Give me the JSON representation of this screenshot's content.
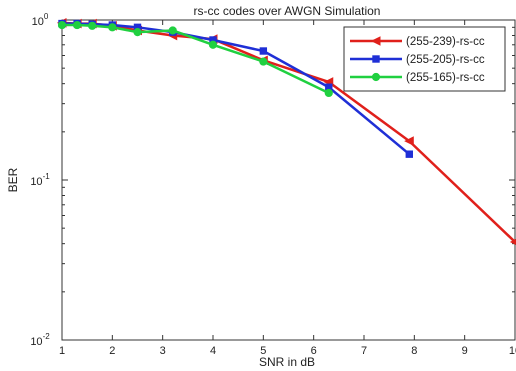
{
  "chart_data": {
    "type": "line",
    "title": "rs-cc codes over AWGN Simulation",
    "xlabel": "SNR in dB",
    "ylabel": "BER",
    "xlim": [
      1,
      10
    ],
    "ylim": [
      0.01,
      1
    ],
    "yscale": "log",
    "grid": false,
    "legend_position": "top-right",
    "xticks": [
      "1",
      "2",
      "3",
      "4",
      "5",
      "6",
      "7",
      "8",
      "9",
      "10"
    ],
    "yticks": [
      {
        "base": "10",
        "exp": "0",
        "value": 1
      },
      {
        "base": "10",
        "exp": "-1",
        "value": 0.1
      },
      {
        "base": "10",
        "exp": "-2",
        "value": 0.01
      }
    ],
    "series": [
      {
        "name": "(255-239)-rs-cc",
        "color": "#e0201b",
        "marker": "triangle-left",
        "points": [
          [
            1.0,
            0.96
          ],
          [
            1.3,
            0.95
          ],
          [
            1.6,
            0.95
          ],
          [
            2.0,
            0.92
          ],
          [
            2.5,
            0.86
          ],
          [
            3.2,
            0.8
          ],
          [
            4.0,
            0.76
          ],
          [
            5.0,
            0.56
          ],
          [
            6.3,
            0.41
          ],
          [
            7.9,
            0.175
          ],
          [
            10.0,
            0.041
          ]
        ]
      },
      {
        "name": "(255-205)-rs-cc",
        "color": "#1f2fd6",
        "marker": "square",
        "points": [
          [
            1.0,
            0.95
          ],
          [
            1.3,
            0.95
          ],
          [
            1.6,
            0.94
          ],
          [
            2.0,
            0.93
          ],
          [
            2.5,
            0.9
          ],
          [
            3.2,
            0.84
          ],
          [
            4.0,
            0.75
          ],
          [
            5.0,
            0.64
          ],
          [
            6.3,
            0.38
          ],
          [
            7.9,
            0.145
          ]
        ]
      },
      {
        "name": "(255-165)-rs-cc",
        "color": "#20d040",
        "marker": "circle",
        "points": [
          [
            1.0,
            0.93
          ],
          [
            1.3,
            0.93
          ],
          [
            1.6,
            0.92
          ],
          [
            2.0,
            0.9
          ],
          [
            2.5,
            0.84
          ],
          [
            3.2,
            0.86
          ],
          [
            4.0,
            0.7
          ],
          [
            5.0,
            0.55
          ],
          [
            6.3,
            0.35
          ]
        ]
      }
    ]
  }
}
